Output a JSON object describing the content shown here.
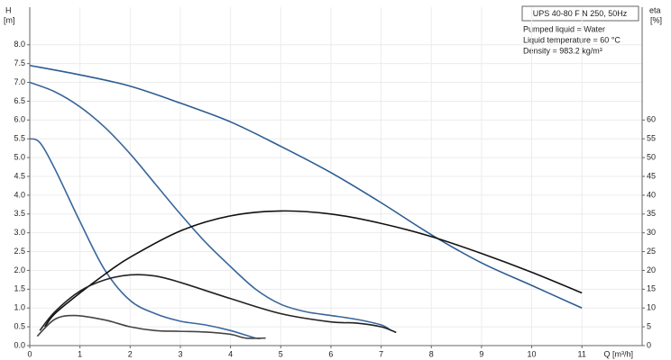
{
  "chart_data": {
    "type": "line",
    "title": "UPS 40-80 F N 250, 50Hz",
    "annotations": [
      "Pumped liquid = Water",
      "Liquid temperature = 60 °C",
      "Density = 983.2 kg/m³"
    ],
    "y_label": "H",
    "y_unit": "[m]",
    "y2_label": "eta",
    "y2_unit": "[%]",
    "x_label": "Q [m³/h]",
    "xlim": [
      0,
      12.2
    ],
    "xticks": [
      0,
      1,
      2,
      3,
      4,
      5,
      6,
      7,
      8,
      9,
      10,
      11
    ],
    "ylim": [
      0,
      9
    ],
    "yticks": [
      {
        "value": 0,
        "label": "0.0"
      },
      {
        "value": 0.5,
        "label": "0.5"
      },
      {
        "value": 1,
        "label": "1.0"
      },
      {
        "value": 1.5,
        "label": "1.5"
      },
      {
        "value": 2,
        "label": "2.0"
      },
      {
        "value": 2.5,
        "label": "2.5"
      },
      {
        "value": 3,
        "label": "3.0"
      },
      {
        "value": 3.5,
        "label": "3.5"
      },
      {
        "value": 4,
        "label": "4.0"
      },
      {
        "value": 4.5,
        "label": "4.5"
      },
      {
        "value": 5,
        "label": "5.0"
      },
      {
        "value": 5.5,
        "label": "5.5"
      },
      {
        "value": 6,
        "label": "6.0"
      },
      {
        "value": 6.5,
        "label": "6.5"
      },
      {
        "value": 7,
        "label": "7.0"
      },
      {
        "value": 7.5,
        "label": "7.5"
      },
      {
        "value": 8,
        "label": "8.0"
      }
    ],
    "y2lim": [
      0,
      90
    ],
    "y2ticks": [
      0,
      5,
      10,
      15,
      20,
      25,
      30,
      35,
      40,
      45,
      50,
      55,
      60
    ],
    "grid": true,
    "series": [
      {
        "color": "#2c5b92",
        "x": [
          0,
          1,
          2,
          3,
          4,
          5,
          6,
          7,
          8,
          9,
          10,
          11
        ],
        "values": [
          7.45,
          7.2,
          6.9,
          6.45,
          5.95,
          5.3,
          4.6,
          3.8,
          2.95,
          2.2,
          1.6,
          1.0
        ]
      },
      {
        "color": "#3a679c",
        "x": [
          0,
          0.5,
          1,
          1.5,
          2,
          2.5,
          3,
          3.5,
          4,
          4.5,
          5,
          5.5,
          6,
          6.5,
          7,
          7.2
        ],
        "values": [
          7.0,
          6.75,
          6.35,
          5.8,
          5.1,
          4.3,
          3.5,
          2.75,
          2.1,
          1.5,
          1.1,
          0.9,
          0.8,
          0.7,
          0.55,
          0.4
        ]
      },
      {
        "color": "#3a679c",
        "x": [
          0,
          0.2,
          0.5,
          1,
          1.5,
          2,
          2.5,
          3,
          3.5,
          4,
          4.5,
          4.6
        ],
        "values": [
          5.5,
          5.4,
          4.7,
          3.3,
          2.0,
          1.2,
          0.85,
          0.65,
          0.55,
          0.4,
          0.2,
          0.2
        ]
      },
      {
        "color": "#111111",
        "axis": "y2",
        "x": [
          0.3,
          0.5,
          1,
          1.5,
          2,
          3,
          4,
          5,
          6,
          7,
          8,
          9,
          10,
          11
        ],
        "values": [
          5,
          8.5,
          14,
          19,
          23.5,
          30.5,
          34.5,
          35.8,
          35,
          32.5,
          29,
          24.5,
          19.5,
          14
        ]
      },
      {
        "color": "#222222",
        "axis": "y2",
        "x": [
          0.2,
          0.5,
          1,
          1.5,
          2,
          2.5,
          3,
          4,
          5,
          6,
          6.5,
          7,
          7.3
        ],
        "values": [
          4,
          9,
          14.5,
          17.5,
          18.8,
          18.5,
          16.8,
          12.5,
          8.5,
          6.3,
          6.0,
          5,
          3.5
        ]
      },
      {
        "color": "#444444",
        "axis": "y2",
        "x": [
          0.15,
          0.5,
          0.9,
          1.5,
          2,
          2.5,
          3,
          3.5,
          4,
          4.3,
          4.7
        ],
        "values": [
          2.5,
          7,
          8,
          6.8,
          5,
          4,
          3.8,
          3.6,
          3,
          2,
          2
        ]
      }
    ]
  }
}
